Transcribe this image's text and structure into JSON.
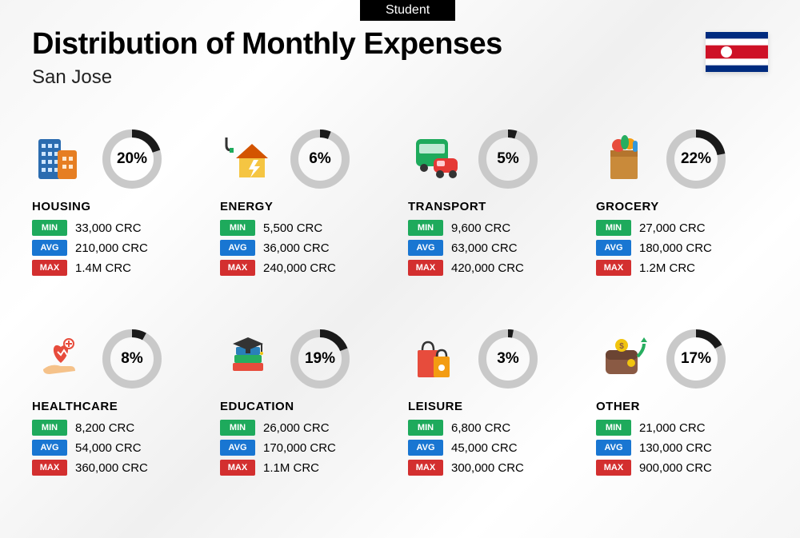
{
  "tag": "Student",
  "title": "Distribution of Monthly Expenses",
  "subtitle": "San Jose",
  "currency": "CRC",
  "labels": {
    "min": "MIN",
    "avg": "AVG",
    "max": "MAX"
  },
  "ring": {
    "track_color": "#c9c9c9",
    "progress_color": "#1a1a1a",
    "stroke_width": 10
  },
  "flag": {
    "stripes": [
      "#002b7f",
      "#ffffff",
      "#ce1126",
      "#ce1126",
      "#ffffff",
      "#002b7f"
    ],
    "emblem_bg": "#ffffff"
  },
  "categories": [
    {
      "key": "housing",
      "name": "HOUSING",
      "pct": 20,
      "min": "33,000",
      "avg": "210,000",
      "max": "1.4M",
      "icon": "buildings"
    },
    {
      "key": "energy",
      "name": "ENERGY",
      "pct": 6,
      "min": "5,500",
      "avg": "36,000",
      "max": "240,000",
      "icon": "house-bolt"
    },
    {
      "key": "transport",
      "name": "TRANSPORT",
      "pct": 5,
      "min": "9,600",
      "avg": "63,000",
      "max": "420,000",
      "icon": "bus-car"
    },
    {
      "key": "grocery",
      "name": "GROCERY",
      "pct": 22,
      "min": "27,000",
      "avg": "180,000",
      "max": "1.2M",
      "icon": "grocery-bag"
    },
    {
      "key": "healthcare",
      "name": "HEALTHCARE",
      "pct": 8,
      "min": "8,200",
      "avg": "54,000",
      "max": "360,000",
      "icon": "heart-hand"
    },
    {
      "key": "education",
      "name": "EDUCATION",
      "pct": 19,
      "min": "26,000",
      "avg": "170,000",
      "max": "1.1M",
      "icon": "books-cap"
    },
    {
      "key": "leisure",
      "name": "LEISURE",
      "pct": 3,
      "min": "6,800",
      "avg": "45,000",
      "max": "300,000",
      "icon": "shopping-bags"
    },
    {
      "key": "other",
      "name": "OTHER",
      "pct": 17,
      "min": "21,000",
      "avg": "130,000",
      "max": "900,000",
      "icon": "wallet-up"
    }
  ]
}
